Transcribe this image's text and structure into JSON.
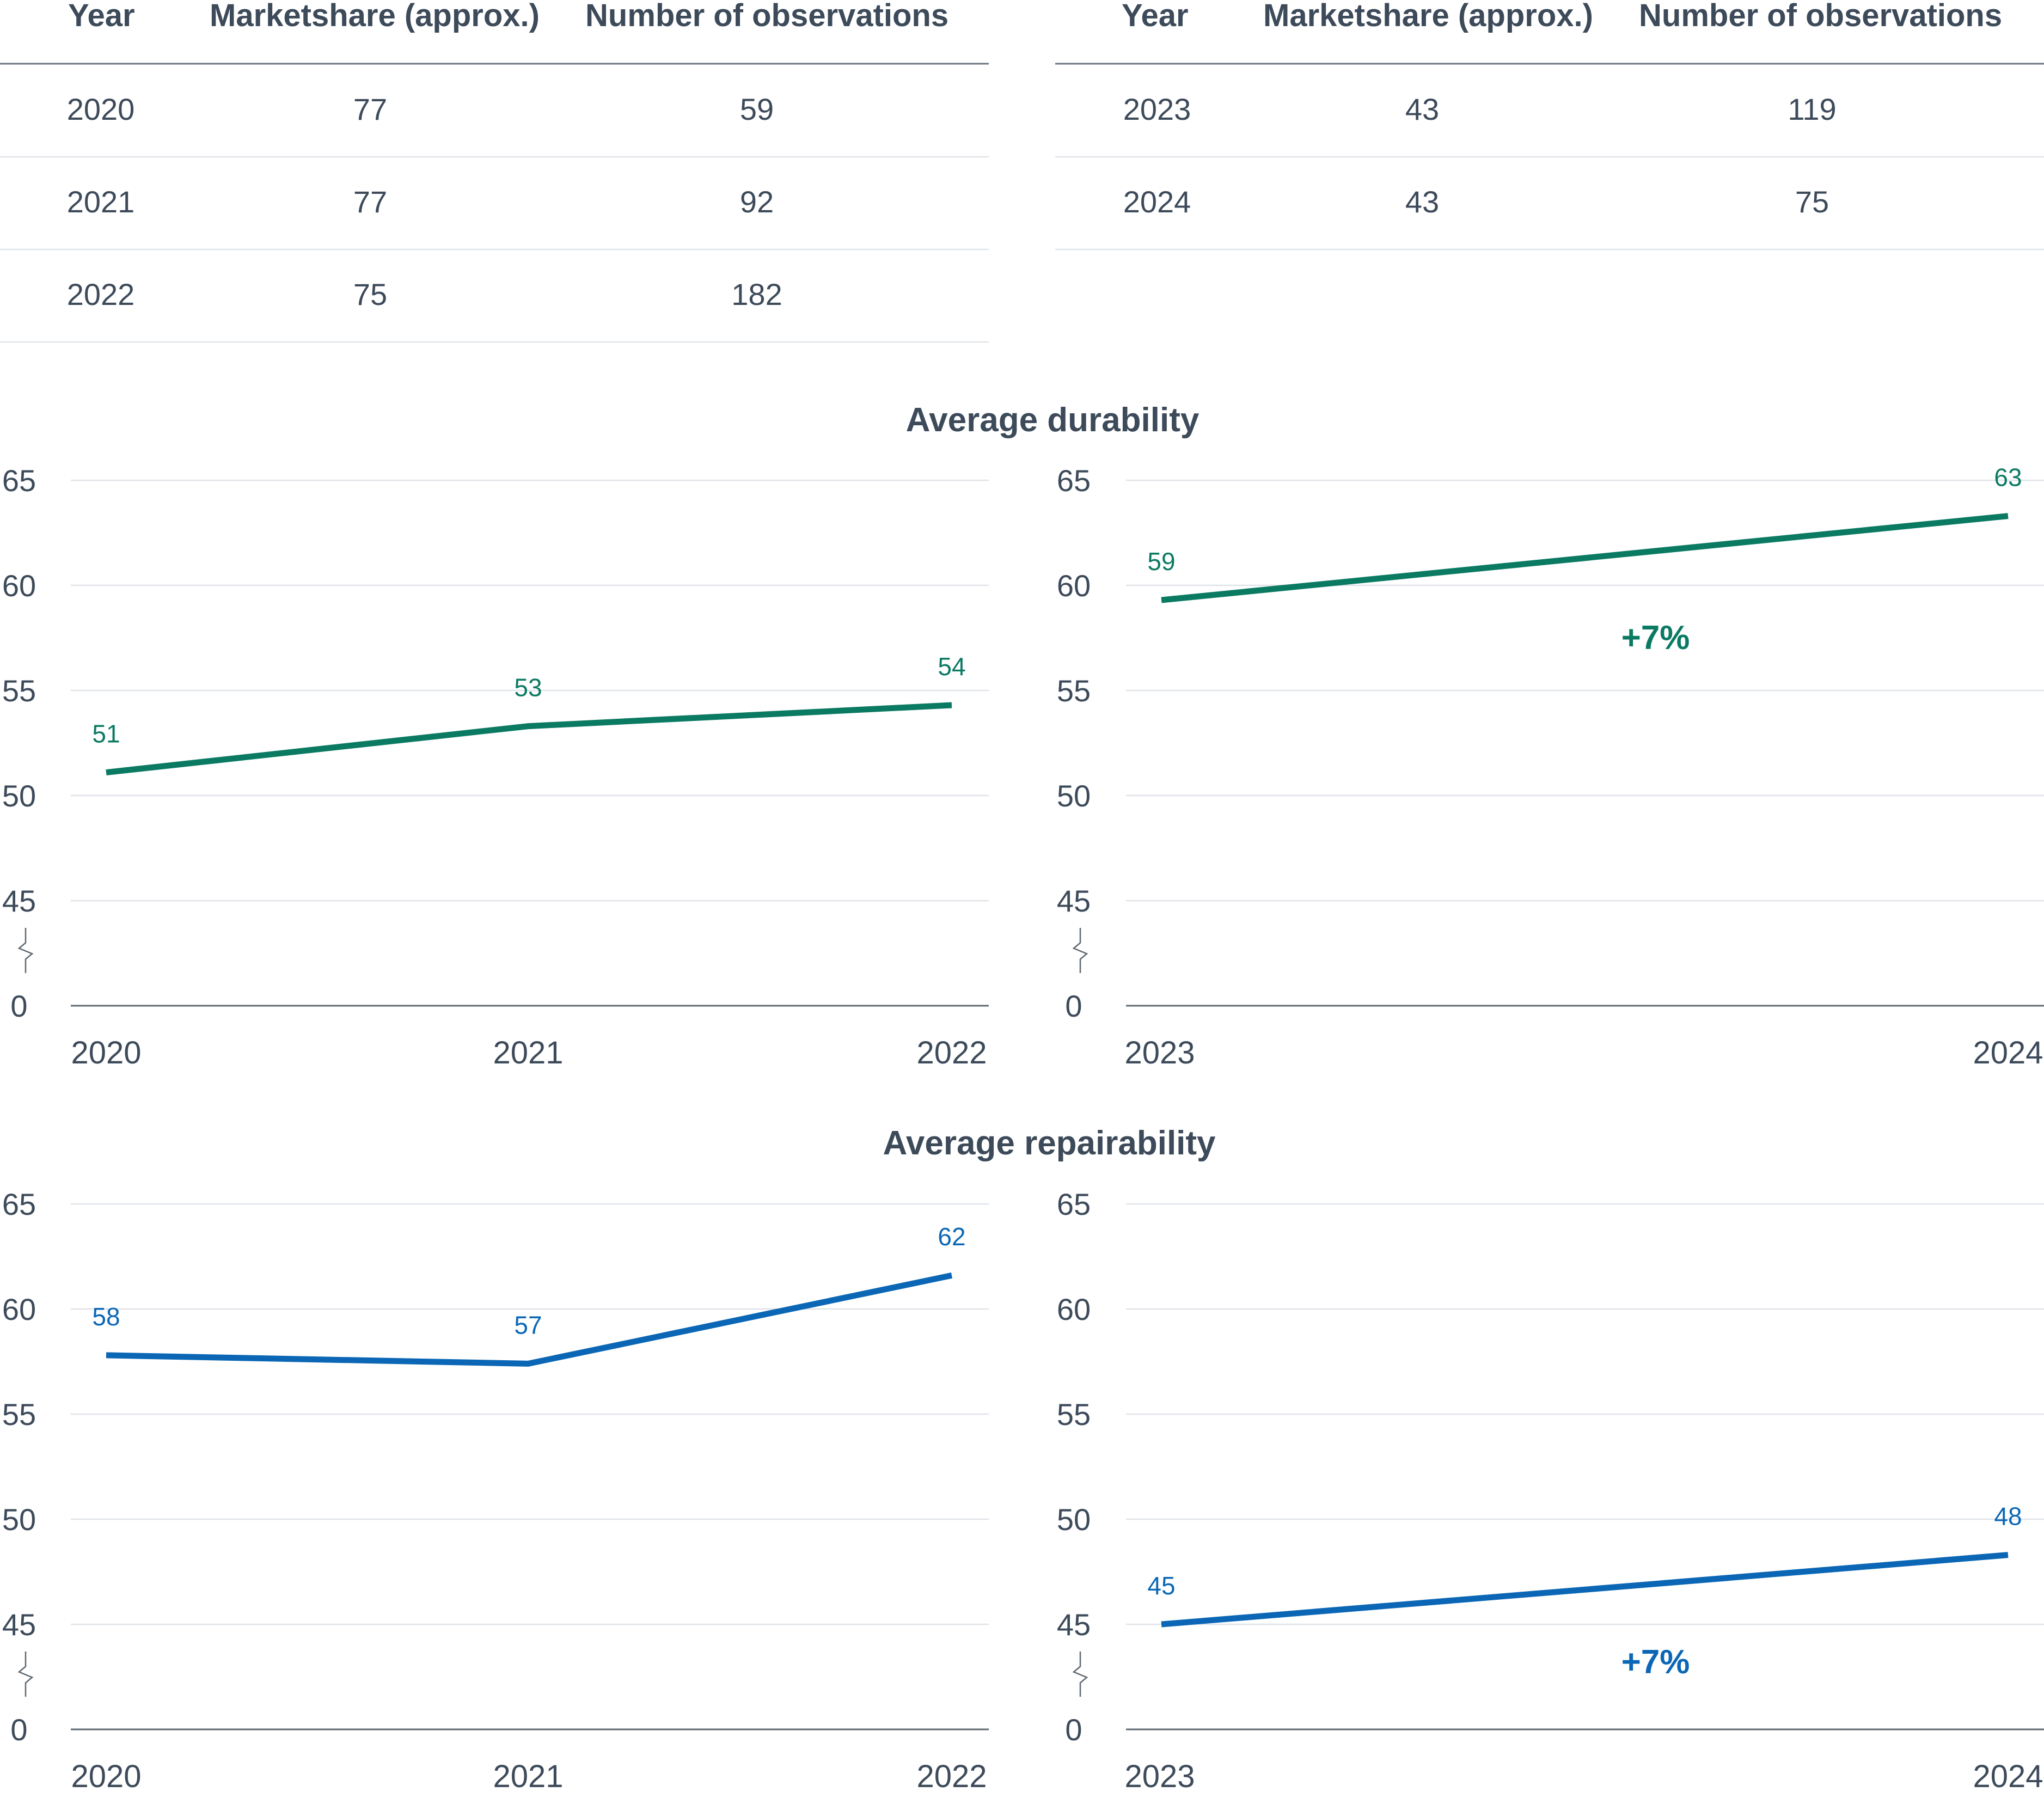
{
  "tables": [
    {
      "headers": [
        "Year",
        "Marketshare (approx.)",
        "Number of observations"
      ],
      "rows": [
        [
          "2020",
          "77",
          "59"
        ],
        [
          "2021",
          "77",
          "92"
        ],
        [
          "2022",
          "75",
          "182"
        ]
      ]
    },
    {
      "headers": [
        "Year",
        "Marketshare (approx.)",
        "Number of observations"
      ],
      "rows": [
        [
          "2023",
          "43",
          "119"
        ],
        [
          "2024",
          "43",
          "75"
        ]
      ]
    }
  ],
  "sections": [
    {
      "title": "Average durability"
    },
    {
      "title": "Average repairability"
    }
  ],
  "colors": {
    "durability": "#0b7a63",
    "repairability": "#0b67b5",
    "text": "#3d4a5a",
    "grid": "#dfe3e8",
    "axis": "#5f6870",
    "rule": "#6b7480"
  },
  "chart_data": [
    {
      "type": "line",
      "section": "Average durability",
      "x": [
        "2020",
        "2021",
        "2022"
      ],
      "series": [
        {
          "values": [
            51.1,
            53.3,
            54.3
          ]
        }
      ],
      "value_labels": [
        "51",
        "53",
        "54"
      ],
      "yticks": [
        "0",
        "45",
        "50",
        "55",
        "60",
        "65"
      ],
      "ylim": [
        45,
        65
      ],
      "axis_break": true,
      "annotation": "",
      "color": "#0b7a63",
      "grid": true
    },
    {
      "type": "line",
      "section": "Average durability",
      "x": [
        "2023",
        "2024"
      ],
      "series": [
        {
          "values": [
            59.3,
            63.3
          ]
        }
      ],
      "value_labels": [
        "59",
        "63"
      ],
      "yticks": [
        "0",
        "45",
        "50",
        "55",
        "60",
        "65"
      ],
      "ylim": [
        45,
        65
      ],
      "axis_break": true,
      "annotation": "+7%",
      "color": "#0b7a63",
      "grid": true
    },
    {
      "type": "line",
      "section": "Average repairability",
      "x": [
        "2020",
        "2021",
        "2022"
      ],
      "series": [
        {
          "values": [
            57.8,
            57.4,
            61.6
          ]
        }
      ],
      "value_labels": [
        "58",
        "57",
        "62"
      ],
      "yticks": [
        "0",
        "45",
        "50",
        "55",
        "60",
        "65"
      ],
      "ylim": [
        45,
        65
      ],
      "axis_break": true,
      "annotation": "",
      "color": "#0b67b5",
      "grid": true
    },
    {
      "type": "line",
      "section": "Average repairability",
      "x": [
        "2023",
        "2024"
      ],
      "series": [
        {
          "values": [
            45.0,
            48.3
          ]
        }
      ],
      "value_labels": [
        "45",
        "48"
      ],
      "yticks": [
        "0",
        "45",
        "50",
        "55",
        "60",
        "65"
      ],
      "ylim": [
        45,
        65
      ],
      "axis_break": true,
      "annotation": "+7%",
      "color": "#0b67b5",
      "grid": true
    }
  ]
}
